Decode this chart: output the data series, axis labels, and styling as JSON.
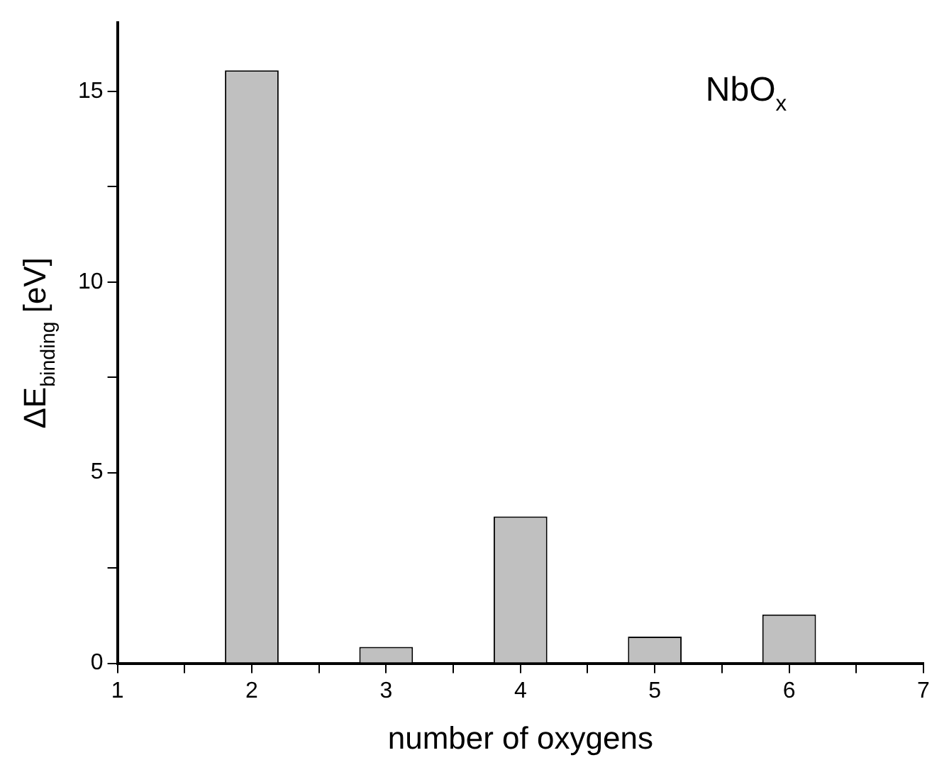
{
  "chart_data": {
    "type": "bar",
    "xlabel": "number of oxygens",
    "ylabel": "ΔE$_{binding}$ [eV]",
    "x": [
      2,
      3,
      4,
      5,
      6
    ],
    "values": [
      15.55,
      0.43,
      3.85,
      0.7,
      1.28
    ],
    "color": "#c0c0c0",
    "xlim": [
      1,
      7
    ],
    "xticks": [
      1,
      {
        "value": 1.5,
        "label": null
      },
      2,
      {
        "value": 2.5,
        "label": null
      },
      3,
      {
        "value": 3.5,
        "label": null
      },
      4,
      {
        "value": 4.5,
        "label": null
      },
      5,
      {
        "value": 5.5,
        "label": null
      },
      6,
      {
        "value": 6.5,
        "label": null
      },
      7
    ],
    "ylim": [
      0,
      16.8
    ],
    "yticks": [
      0,
      {
        "value": 2.5,
        "label": null
      },
      5,
      {
        "value": 7.5,
        "label": null
      },
      10,
      {
        "value": 12.5,
        "label": null
      },
      15
    ],
    "annotations": [
      "NbO$_{x}$"
    ],
    "grid": false,
    "legend": false
  }
}
